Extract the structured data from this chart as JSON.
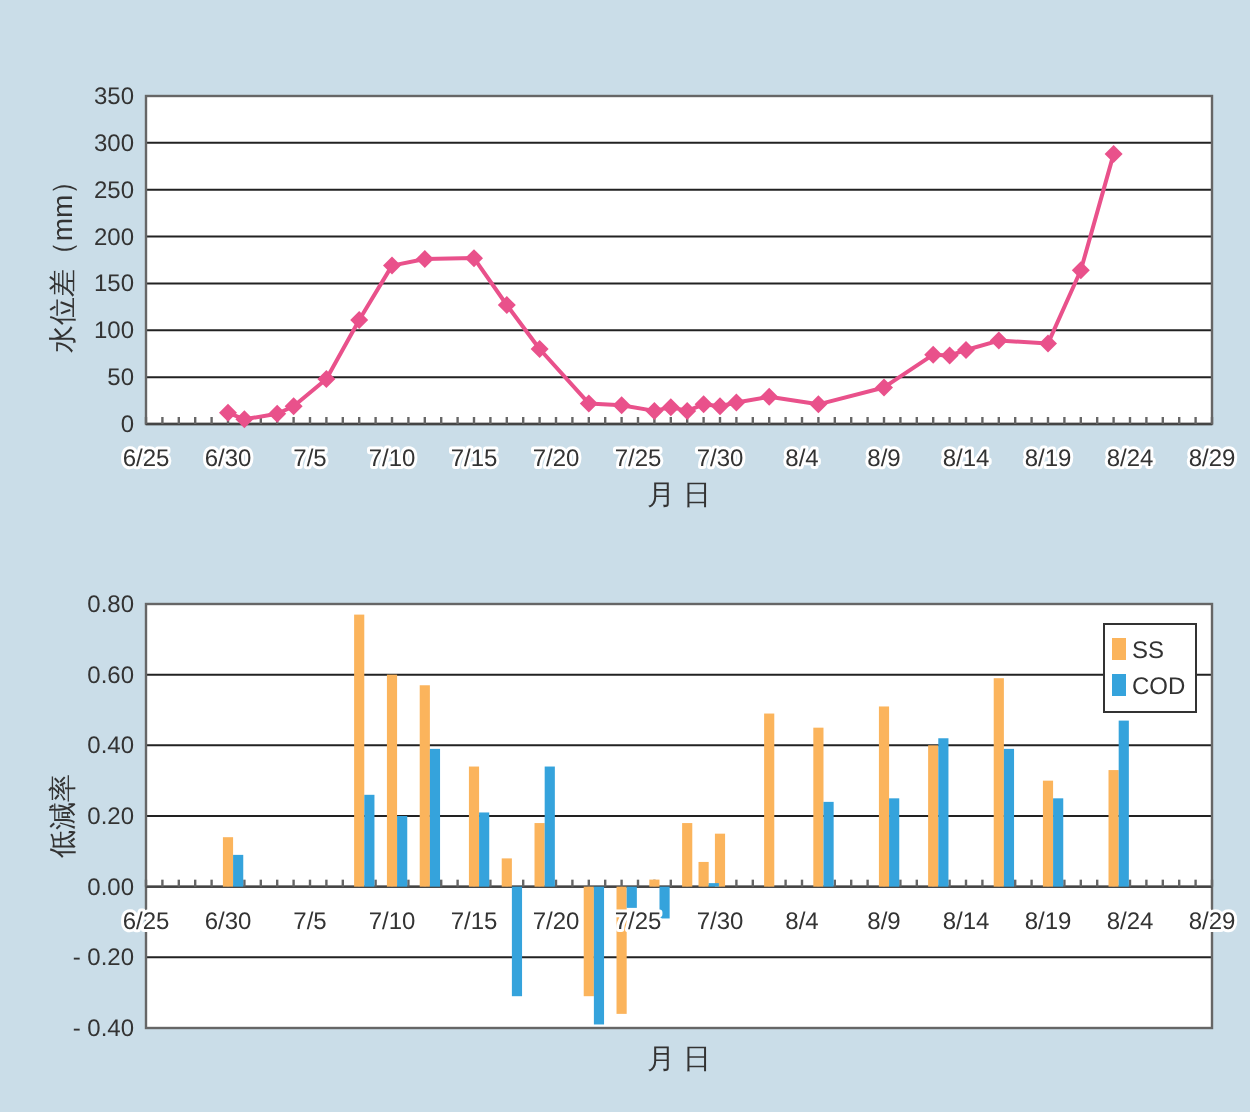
{
  "chart_data": [
    {
      "type": "line",
      "xlabel": "月 日",
      "ylabel": "水位差（mm）",
      "x": [
        "--06-30",
        "--07-01",
        "--07-03",
        "--07-04",
        "--07-06",
        "--07-08",
        "--07-10",
        "--07-12",
        "--07-15",
        "--07-17",
        "--07-19",
        "--07-22",
        "--07-24",
        "--07-26",
        "--07-27",
        "--07-28",
        "--07-29",
        "--07-30",
        "--07-31",
        "--08-02",
        "--08-05",
        "--08-09",
        "--08-12",
        "--08-13",
        "--08-14",
        "--08-16",
        "--08-19",
        "--08-21",
        "--08-23"
      ],
      "series": [
        {
          "color": "#e9518b",
          "values": [
            12,
            5,
            11,
            19,
            48,
            111,
            169,
            176,
            177,
            127,
            80,
            22,
            20,
            14,
            18,
            14,
            21,
            19,
            23,
            29,
            21,
            39,
            74,
            73,
            79,
            89,
            86,
            164,
            288
          ]
        }
      ],
      "xlim": [
        "--06-25",
        "--08-29"
      ],
      "xticks": [
        {
          "value": "--06-25",
          "label": "6/25"
        },
        {
          "value": "--06-30",
          "label": "6/30"
        },
        {
          "value": "--07-05",
          "label": "7/5"
        },
        {
          "value": "--07-10",
          "label": "7/10"
        },
        {
          "value": "--07-15",
          "label": "7/15"
        },
        {
          "value": "--07-20",
          "label": "7/20"
        },
        {
          "value": "--07-25",
          "label": "7/25"
        },
        {
          "value": "--07-30",
          "label": "7/30"
        },
        {
          "value": "--08-04",
          "label": "8/4"
        },
        {
          "value": "--08-09",
          "label": "8/9"
        },
        {
          "value": "--08-14",
          "label": "8/14"
        },
        {
          "value": "--08-19",
          "label": "8/19"
        },
        {
          "value": "--08-24",
          "label": "8/24"
        },
        {
          "value": "--08-29",
          "label": "8/29"
        }
      ],
      "ylim": [
        0,
        350
      ],
      "yticks": [
        0,
        50,
        100,
        150,
        200,
        250,
        300,
        350
      ],
      "grid": "y",
      "marker": "diamond",
      "legend": false
    },
    {
      "type": "bar",
      "xlabel": "月 日",
      "ylabel": "低減率",
      "x": [
        "--06-30",
        "--07-08",
        "--07-10",
        "--07-12",
        "--07-15",
        "--07-17",
        "--07-19",
        "--07-22",
        "--07-24",
        "--07-26",
        "--07-28",
        "--07-29",
        "--07-30",
        "--08-02",
        "--08-05",
        "--08-09",
        "--08-12",
        "--08-16",
        "--08-19",
        "--08-23"
      ],
      "series": [
        {
          "name": "SS",
          "color": "#fbb45c",
          "values": [
            0.14,
            0.77,
            0.6,
            0.57,
            0.34,
            0.08,
            0.18,
            -0.31,
            -0.36,
            0.02,
            0.18,
            0.07,
            0.15,
            0.49,
            0.45,
            0.51,
            0.4,
            0.59,
            0.3,
            0.33
          ]
        },
        {
          "name": "COD",
          "color": "#35a3dc",
          "values": [
            0.09,
            0.26,
            0.2,
            0.39,
            0.21,
            -0.31,
            0.34,
            -0.39,
            -0.06,
            -0.09,
            null,
            0.01,
            null,
            null,
            0.24,
            0.25,
            0.42,
            0.39,
            0.25,
            0.47
          ]
        }
      ],
      "xlim": [
        "--06-25",
        "--08-29"
      ],
      "xticks": [
        {
          "value": "--06-25",
          "label": "6/25"
        },
        {
          "value": "--06-30",
          "label": "6/30"
        },
        {
          "value": "--07-05",
          "label": "7/5"
        },
        {
          "value": "--07-10",
          "label": "7/10"
        },
        {
          "value": "--07-15",
          "label": "7/15"
        },
        {
          "value": "--07-20",
          "label": "7/20"
        },
        {
          "value": "--07-25",
          "label": "7/25"
        },
        {
          "value": "--07-30",
          "label": "7/30"
        },
        {
          "value": "--08-04",
          "label": "8/4"
        },
        {
          "value": "--08-09",
          "label": "8/9"
        },
        {
          "value": "--08-14",
          "label": "8/14"
        },
        {
          "value": "--08-19",
          "label": "8/19"
        },
        {
          "value": "--08-24",
          "label": "8/24"
        },
        {
          "value": "--08-29",
          "label": "8/29"
        }
      ],
      "ylim": [
        -0.4,
        0.8
      ],
      "yticks": [
        {
          "value": -0.4,
          "label": "- 0.40"
        },
        {
          "value": -0.2,
          "label": "- 0.20"
        },
        {
          "value": 0,
          "label": "0.00"
        },
        {
          "value": 0.2,
          "label": "0.20"
        },
        {
          "value": 0.4,
          "label": "0.40"
        },
        {
          "value": 0.6,
          "label": "0.60"
        },
        {
          "value": 0.8,
          "label": "0.80"
        }
      ],
      "grid": "y",
      "legend": "top right"
    }
  ]
}
